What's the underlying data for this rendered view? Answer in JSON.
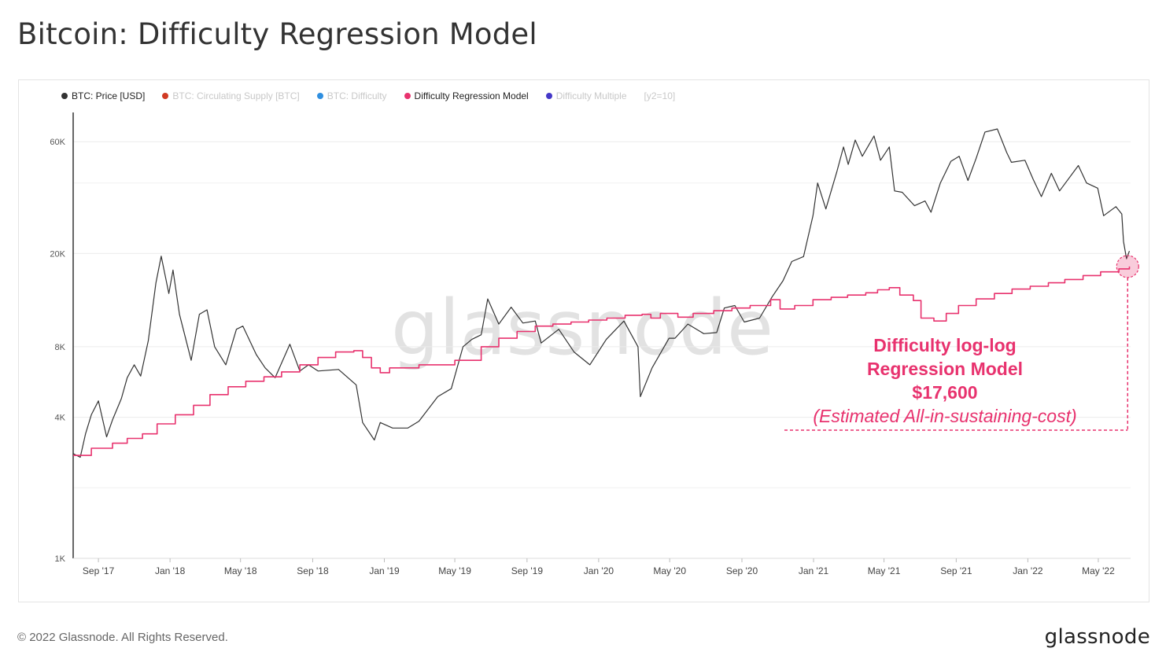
{
  "title": "Bitcoin: Difficulty Regression Model",
  "legend": [
    {
      "label": "BTC: Price [USD]",
      "color": "#333333",
      "active": true
    },
    {
      "label": "BTC: Circulating Supply [BTC]",
      "color": "#d13a23",
      "active": false
    },
    {
      "label": "BTC: Difficulty",
      "color": "#2f8fe0",
      "active": false
    },
    {
      "label": "Difficulty Regression Model",
      "color": "#e8326e",
      "active": true
    },
    {
      "label": "Difficulty Multiple",
      "color": "#4438c8",
      "active": false
    }
  ],
  "legend_scale": "[y2=10]",
  "watermark": "glassnode",
  "annotation": {
    "line1": "Difficulty log-log",
    "line2": "Regression Model",
    "line3": "$17,600",
    "line4": "(Estimated All-in-sustaining-cost)"
  },
  "footer": "© 2022 Glassnode. All Rights Reserved.",
  "brand": "glassnode",
  "chart_data": {
    "type": "line",
    "y_scale": "log",
    "ylim": [
      1000,
      80000
    ],
    "y_ticks": [
      {
        "label": "1K",
        "value": 1000
      },
      {
        "label": "4K",
        "value": 4000
      },
      {
        "label": "8K",
        "value": 8000
      },
      {
        "label": "20K",
        "value": 20000
      },
      {
        "label": "60K",
        "value": 60000
      }
    ],
    "x_range": [
      "2017-07-20",
      "2022-06-25"
    ],
    "x_ticks": [
      {
        "label": "Sep '17",
        "date": "2017-09-01"
      },
      {
        "label": "Jan '18",
        "date": "2018-01-01"
      },
      {
        "label": "May '18",
        "date": "2018-05-01"
      },
      {
        "label": "Sep '18",
        "date": "2018-09-01"
      },
      {
        "label": "Jan '19",
        "date": "2019-01-01"
      },
      {
        "label": "May '19",
        "date": "2019-05-01"
      },
      {
        "label": "Sep '19",
        "date": "2019-09-01"
      },
      {
        "label": "Jan '20",
        "date": "2020-01-01"
      },
      {
        "label": "May '20",
        "date": "2020-05-01"
      },
      {
        "label": "Sep '20",
        "date": "2020-09-01"
      },
      {
        "label": "Jan '21",
        "date": "2021-01-01"
      },
      {
        "label": "May '21",
        "date": "2021-05-01"
      },
      {
        "label": "Sep '21",
        "date": "2021-09-01"
      },
      {
        "label": "Jan '22",
        "date": "2022-01-01"
      },
      {
        "label": "May '22",
        "date": "2022-05-01"
      }
    ],
    "highlight_point": {
      "date": "2022-06-20",
      "value": 17600
    },
    "series": [
      {
        "name": "BTC: Price [USD]",
        "color": "#333333",
        "points": [
          [
            "2017-07-20",
            2800
          ],
          [
            "2017-08-01",
            2700
          ],
          [
            "2017-08-10",
            3400
          ],
          [
            "2017-08-20",
            4100
          ],
          [
            "2017-09-01",
            4700
          ],
          [
            "2017-09-15",
            3300
          ],
          [
            "2017-09-25",
            3900
          ],
          [
            "2017-10-10",
            4800
          ],
          [
            "2017-10-20",
            5900
          ],
          [
            "2017-11-01",
            6700
          ],
          [
            "2017-11-12",
            6000
          ],
          [
            "2017-11-25",
            8500
          ],
          [
            "2017-12-08",
            15000
          ],
          [
            "2017-12-17",
            19500
          ],
          [
            "2017-12-30",
            13500
          ],
          [
            "2018-01-06",
            17000
          ],
          [
            "2018-01-17",
            11000
          ],
          [
            "2018-02-06",
            7000
          ],
          [
            "2018-02-20",
            11000
          ],
          [
            "2018-03-05",
            11500
          ],
          [
            "2018-03-18",
            8000
          ],
          [
            "2018-04-06",
            6700
          ],
          [
            "2018-04-24",
            9500
          ],
          [
            "2018-05-05",
            9800
          ],
          [
            "2018-05-28",
            7400
          ],
          [
            "2018-06-12",
            6500
          ],
          [
            "2018-06-29",
            5900
          ],
          [
            "2018-07-24",
            8200
          ],
          [
            "2018-08-10",
            6300
          ],
          [
            "2018-08-25",
            6700
          ],
          [
            "2018-09-10",
            6300
          ],
          [
            "2018-10-15",
            6400
          ],
          [
            "2018-11-14",
            5500
          ],
          [
            "2018-11-25",
            3800
          ],
          [
            "2018-12-15",
            3200
          ],
          [
            "2018-12-25",
            3800
          ],
          [
            "2019-01-15",
            3600
          ],
          [
            "2019-02-10",
            3600
          ],
          [
            "2019-03-01",
            3850
          ],
          [
            "2019-04-02",
            4900
          ],
          [
            "2019-04-25",
            5300
          ],
          [
            "2019-05-15",
            8000
          ],
          [
            "2019-05-30",
            8600
          ],
          [
            "2019-06-15",
            9000
          ],
          [
            "2019-06-26",
            12800
          ],
          [
            "2019-07-15",
            10000
          ],
          [
            "2019-08-05",
            11800
          ],
          [
            "2019-08-25",
            10100
          ],
          [
            "2019-09-15",
            10300
          ],
          [
            "2019-09-25",
            8300
          ],
          [
            "2019-10-25",
            9500
          ],
          [
            "2019-11-20",
            7600
          ],
          [
            "2019-12-17",
            6700
          ],
          [
            "2020-01-14",
            8600
          ],
          [
            "2020-02-13",
            10300
          ],
          [
            "2020-03-08",
            8000
          ],
          [
            "2020-03-12",
            4900
          ],
          [
            "2020-04-01",
            6500
          ],
          [
            "2020-04-30",
            8700
          ],
          [
            "2020-05-10",
            8700
          ],
          [
            "2020-06-01",
            10000
          ],
          [
            "2020-06-28",
            9100
          ],
          [
            "2020-07-20",
            9200
          ],
          [
            "2020-08-02",
            11700
          ],
          [
            "2020-08-20",
            12000
          ],
          [
            "2020-09-05",
            10200
          ],
          [
            "2020-10-01",
            10600
          ],
          [
            "2020-10-22",
            13000
          ],
          [
            "2020-11-10",
            15300
          ],
          [
            "2020-11-25",
            18500
          ],
          [
            "2020-12-15",
            19400
          ],
          [
            "2020-12-31",
            29000
          ],
          [
            "2021-01-08",
            40000
          ],
          [
            "2021-01-22",
            31000
          ],
          [
            "2021-02-10",
            45000
          ],
          [
            "2021-02-21",
            57000
          ],
          [
            "2021-03-01",
            48000
          ],
          [
            "2021-03-13",
            61000
          ],
          [
            "2021-03-25",
            52000
          ],
          [
            "2021-04-14",
            63500
          ],
          [
            "2021-04-25",
            50000
          ],
          [
            "2021-05-10",
            57000
          ],
          [
            "2021-05-19",
            37000
          ],
          [
            "2021-06-01",
            36500
          ],
          [
            "2021-06-22",
            32000
          ],
          [
            "2021-07-10",
            33500
          ],
          [
            "2021-07-20",
            30000
          ],
          [
            "2021-08-05",
            40000
          ],
          [
            "2021-08-23",
            49500
          ],
          [
            "2021-09-06",
            52000
          ],
          [
            "2021-09-21",
            41000
          ],
          [
            "2021-10-05",
            51000
          ],
          [
            "2021-10-20",
            66000
          ],
          [
            "2021-11-10",
            68000
          ],
          [
            "2021-11-26",
            54000
          ],
          [
            "2021-12-04",
            49000
          ],
          [
            "2021-12-27",
            50000
          ],
          [
            "2022-01-10",
            41500
          ],
          [
            "2022-01-24",
            35000
          ],
          [
            "2022-02-10",
            44000
          ],
          [
            "2022-02-24",
            37000
          ],
          [
            "2022-03-28",
            47500
          ],
          [
            "2022-04-11",
            40000
          ],
          [
            "2022-04-30",
            38000
          ],
          [
            "2022-05-10",
            29000
          ],
          [
            "2022-05-31",
            31700
          ],
          [
            "2022-06-10",
            29500
          ],
          [
            "2022-06-13",
            22500
          ],
          [
            "2022-06-18",
            19000
          ],
          [
            "2022-06-23",
            20500
          ]
        ]
      },
      {
        "name": "Difficulty Regression Model",
        "color": "#e8326e",
        "points": [
          [
            "2017-07-20",
            2750
          ],
          [
            "2017-08-20",
            2950
          ],
          [
            "2017-09-25",
            3100
          ],
          [
            "2017-10-20",
            3250
          ],
          [
            "2017-11-15",
            3400
          ],
          [
            "2017-12-10",
            3750
          ],
          [
            "2018-01-10",
            4100
          ],
          [
            "2018-02-10",
            4500
          ],
          [
            "2018-03-10",
            5000
          ],
          [
            "2018-04-10",
            5400
          ],
          [
            "2018-05-10",
            5700
          ],
          [
            "2018-06-10",
            5950
          ],
          [
            "2018-07-10",
            6250
          ],
          [
            "2018-08-10",
            6700
          ],
          [
            "2018-09-10",
            7200
          ],
          [
            "2018-10-10",
            7600
          ],
          [
            "2018-11-10",
            7700
          ],
          [
            "2018-11-25",
            7200
          ],
          [
            "2018-12-10",
            6500
          ],
          [
            "2018-12-25",
            6200
          ],
          [
            "2019-01-10",
            6500
          ],
          [
            "2019-03-01",
            6700
          ],
          [
            "2019-05-01",
            7000
          ],
          [
            "2019-06-15",
            8000
          ],
          [
            "2019-07-15",
            8700
          ],
          [
            "2019-08-15",
            9300
          ],
          [
            "2019-09-15",
            9800
          ],
          [
            "2019-10-15",
            10000
          ],
          [
            "2019-11-15",
            10200
          ],
          [
            "2019-12-15",
            10400
          ],
          [
            "2020-01-15",
            10600
          ],
          [
            "2020-02-15",
            10900
          ],
          [
            "2020-03-15",
            11000
          ],
          [
            "2020-03-30",
            10600
          ],
          [
            "2020-04-15",
            11100
          ],
          [
            "2020-05-15",
            10700
          ],
          [
            "2020-06-10",
            11100
          ],
          [
            "2020-07-15",
            11400
          ],
          [
            "2020-08-15",
            11700
          ],
          [
            "2020-09-15",
            12000
          ],
          [
            "2020-10-20",
            12700
          ],
          [
            "2020-11-05",
            11600
          ],
          [
            "2020-11-30",
            12000
          ],
          [
            "2020-12-31",
            12700
          ],
          [
            "2021-01-31",
            13000
          ],
          [
            "2021-02-28",
            13300
          ],
          [
            "2021-03-31",
            13600
          ],
          [
            "2021-04-20",
            14000
          ],
          [
            "2021-05-10",
            14300
          ],
          [
            "2021-05-28",
            13300
          ],
          [
            "2021-06-20",
            12600
          ],
          [
            "2021-07-03",
            10600
          ],
          [
            "2021-07-25",
            10300
          ],
          [
            "2021-08-15",
            11100
          ],
          [
            "2021-09-05",
            12000
          ],
          [
            "2021-10-05",
            12800
          ],
          [
            "2021-11-05",
            13500
          ],
          [
            "2021-12-05",
            14100
          ],
          [
            "2022-01-05",
            14500
          ],
          [
            "2022-02-05",
            15000
          ],
          [
            "2022-03-05",
            15500
          ],
          [
            "2022-04-05",
            16100
          ],
          [
            "2022-05-05",
            16700
          ],
          [
            "2022-06-05",
            17200
          ],
          [
            "2022-06-23",
            17600
          ]
        ]
      }
    ]
  }
}
